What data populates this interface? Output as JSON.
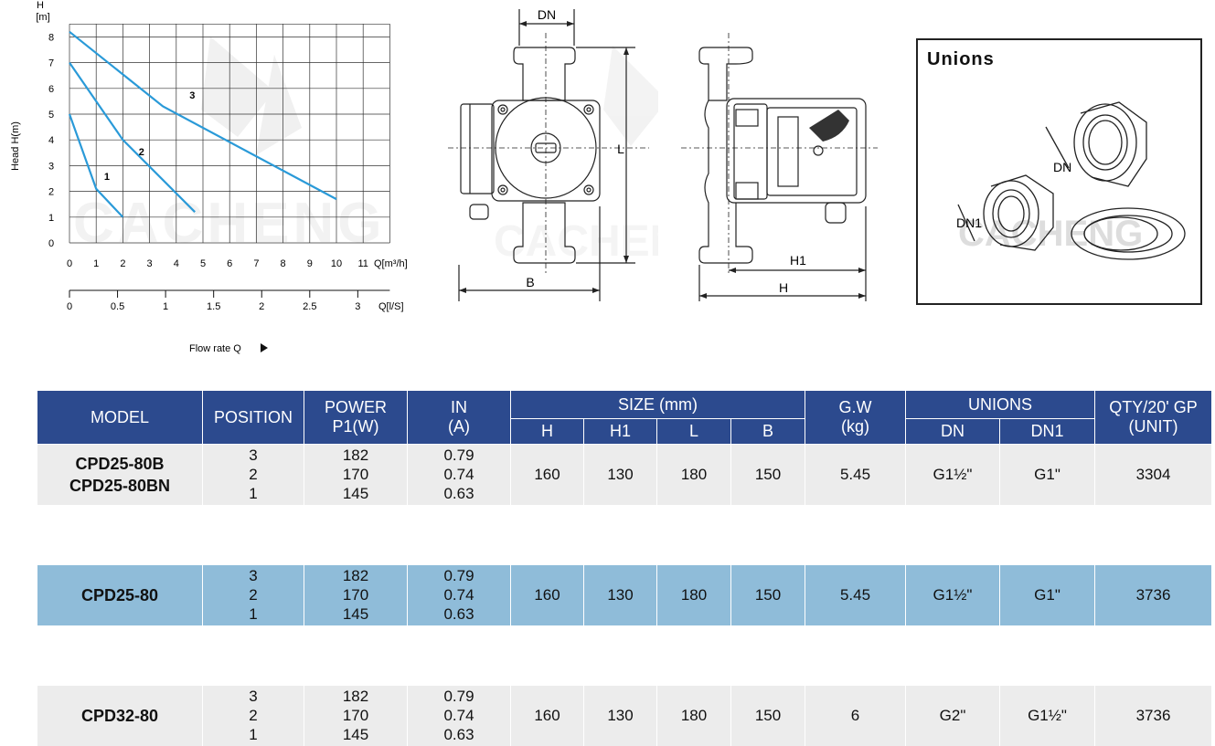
{
  "curve_chart": {
    "y_axis_symbol": "H",
    "y_axis_unit": "[m]",
    "y_axis_title": "Head H(m)",
    "y_ticks": [
      "0",
      "1",
      "2",
      "3",
      "4",
      "5",
      "6",
      "7",
      "8"
    ],
    "x_ticks_m3h": [
      "0",
      "1",
      "2",
      "3",
      "4",
      "5",
      "6",
      "7",
      "8",
      "9",
      "10",
      "11"
    ],
    "x_unit_m3h": "Q[m³/h]",
    "x_ticks_ls": [
      "0",
      "0.5",
      "1",
      "1.5",
      "2",
      "2.5",
      "3"
    ],
    "x_unit_ls": "Q[l/S]",
    "x_title": "Flow rate Q",
    "curve_labels": [
      "1",
      "2",
      "3"
    ],
    "watermark": "CACHENG",
    "line_color": "#2a9ad8"
  },
  "chart_data": {
    "type": "line",
    "xlabel": "Q[m³/h]",
    "ylabel": "Head H(m)",
    "xlim": [
      0,
      12
    ],
    "ylim": [
      0,
      8.5
    ],
    "grid": true,
    "series": [
      {
        "name": "1",
        "x": [
          0,
          1,
          2
        ],
        "y": [
          5,
          2.1,
          1
        ]
      },
      {
        "name": "2",
        "x": [
          0,
          2,
          4.7
        ],
        "y": [
          7,
          4,
          1.2
        ]
      },
      {
        "name": "3",
        "x": [
          0,
          3.5,
          10
        ],
        "y": [
          8.2,
          5.3,
          1.7
        ]
      }
    ]
  },
  "front_view": {
    "label_dn": "DN",
    "label_b": "B",
    "label_l": "L"
  },
  "side_view": {
    "label_h1": "H1",
    "label_h": "H"
  },
  "unions_box": {
    "title": "Unions",
    "label_dn": "DN",
    "label_dn1": "DN1",
    "watermark": "CACHENG"
  },
  "table": {
    "headers": {
      "model": "MODEL",
      "position": "POSITION",
      "power_l1": "POWER",
      "power_l2": "P1(W)",
      "in_l1": "IN",
      "in_l2": "(A)",
      "size": "SIZE (mm)",
      "h": "H",
      "h1": "H1",
      "l": "L",
      "b": "B",
      "gw_l1": "G.W",
      "gw_l2": "(kg)",
      "unions": "UNIONS",
      "dn": "DN",
      "dn1": "DN1",
      "qty_l1": "QTY/20' GP",
      "qty_l2": "(UNIT)"
    },
    "rows": [
      {
        "model_l1": "CPD25-80B",
        "model_l2": "CPD25-80BN",
        "positions": [
          "3",
          "2",
          "1"
        ],
        "power": [
          "182",
          "170",
          "145"
        ],
        "current": [
          "0.79",
          "0.74",
          "0.63"
        ],
        "h": "160",
        "h1": "130",
        "l": "180",
        "b": "150",
        "gw": "5.45",
        "dn": "G1½\"",
        "dn1": "G1\"",
        "qty": "3304"
      },
      {
        "model_l1": "CPD25-80",
        "positions": [
          "3",
          "2",
          "1"
        ],
        "power": [
          "182",
          "170",
          "145"
        ],
        "current": [
          "0.79",
          "0.74",
          "0.63"
        ],
        "h": "160",
        "h1": "130",
        "l": "180",
        "b": "150",
        "gw": "5.45",
        "dn": "G1½\"",
        "dn1": "G1\"",
        "qty": "3736"
      },
      {
        "model_l1": "CPD32-80",
        "positions": [
          "3",
          "2",
          "1"
        ],
        "power": [
          "182",
          "170",
          "145"
        ],
        "current": [
          "0.79",
          "0.74",
          "0.63"
        ],
        "h": "160",
        "h1": "130",
        "l": "180",
        "b": "150",
        "gw": "6",
        "dn": "G2\"",
        "dn1": "G1½\"",
        "qty": "3736"
      }
    ],
    "colors": {
      "header_bg": "#2c4a8e",
      "row_light": "#ececec",
      "row_blue": "#8fbcd9"
    }
  }
}
